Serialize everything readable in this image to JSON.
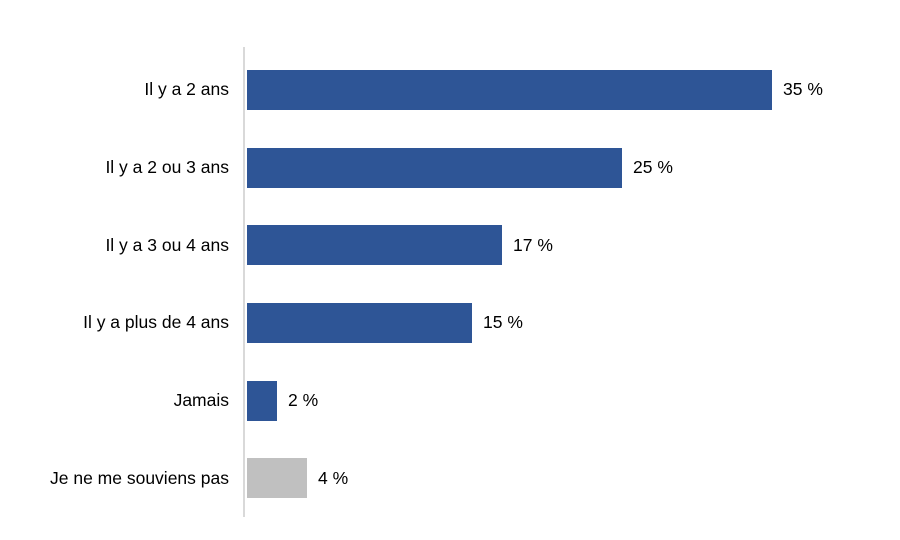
{
  "chart_data": {
    "type": "bar",
    "orientation": "horizontal",
    "title": "",
    "xlabel": "",
    "ylabel": "",
    "grid": false,
    "legend": false,
    "xlim": [
      0,
      36.7
    ],
    "categories": [
      "Il y a 2 ans",
      "Il y a 2 ou 3 ans",
      "Il y a 3 ou 4 ans",
      "Il y a plus de 4 ans",
      "Jamais",
      "Je ne me souviens pas"
    ],
    "values": [
      35,
      25,
      17,
      15,
      2,
      4
    ],
    "value_labels": [
      "35 %",
      "25 %",
      "17 %",
      "15 %",
      "2 %",
      "4 %"
    ],
    "bar_colors": [
      "#2E5596",
      "#2E5596",
      "#2E5596",
      "#2E5596",
      "#2E5596",
      "#C0C0C0"
    ],
    "colors": {
      "primary_bar": "#2E5596",
      "neutral_bar": "#C0C0C0",
      "axis_line": "#D9D9D9",
      "label_text": "#000000",
      "background": "#FFFFFF"
    }
  }
}
